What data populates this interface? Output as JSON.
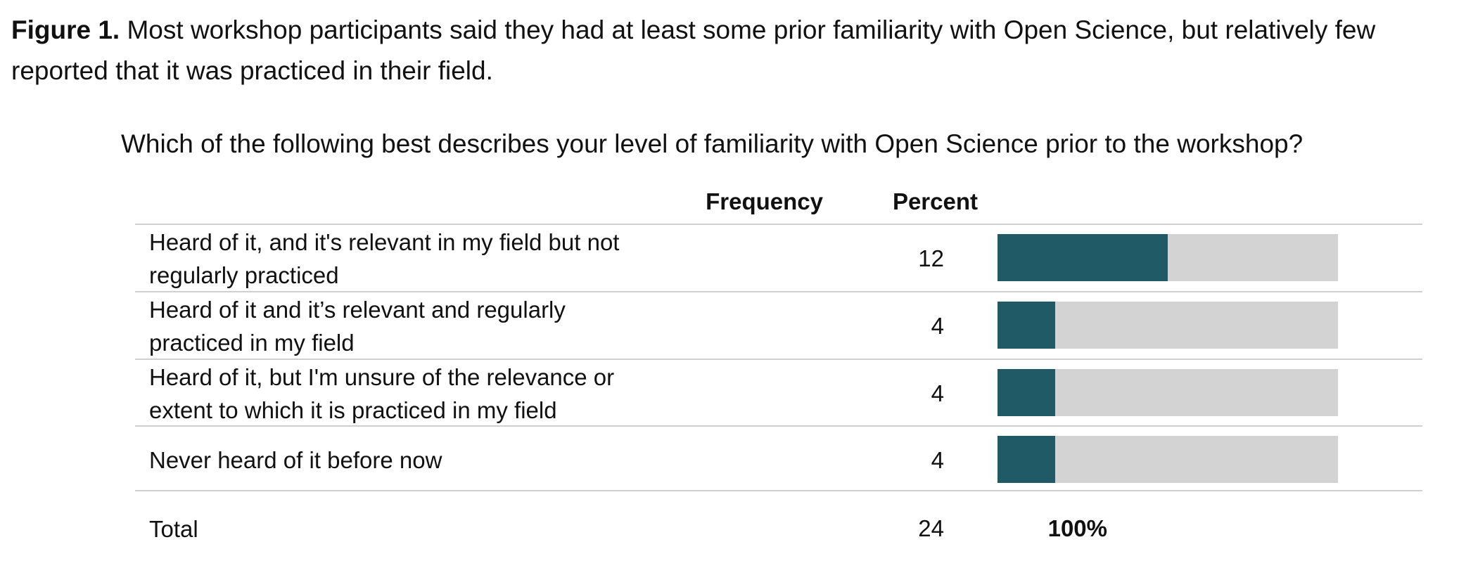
{
  "caption": {
    "label": "Figure 1.",
    "text": " Most workshop participants said they had at least some prior familiarity with Open Science, but relatively few reported that it was practiced in their field."
  },
  "chart_data": {
    "type": "bar",
    "title": "Which of the following best describes your level of familiarity with Open Science prior to the workshop?",
    "columns": {
      "frequency": "Frequency",
      "percent": "Percent"
    },
    "colors": {
      "bar": "#1f5a66",
      "track": "#d3d3d3"
    },
    "xlim": [
      0,
      100
    ],
    "rows": [
      {
        "label": "Heard of it, and it's relevant in my field but not regularly practiced",
        "frequency": "12",
        "percent_label": "50%",
        "value": 50
      },
      {
        "label": "Heard of it and it’s relevant and regularly practiced in my field",
        "frequency": "4",
        "percent_label": "17%",
        "value": 17
      },
      {
        "label": "Heard of it, but I'm unsure of the relevance or extent to which it is practiced in my field",
        "frequency": "4",
        "percent_label": "17%",
        "value": 17
      },
      {
        "label": "Never heard of it before now",
        "frequency": "4",
        "percent_label": "17%",
        "value": 17
      }
    ],
    "total": {
      "label": "Total",
      "frequency": "24",
      "percent_label": "100%"
    }
  }
}
